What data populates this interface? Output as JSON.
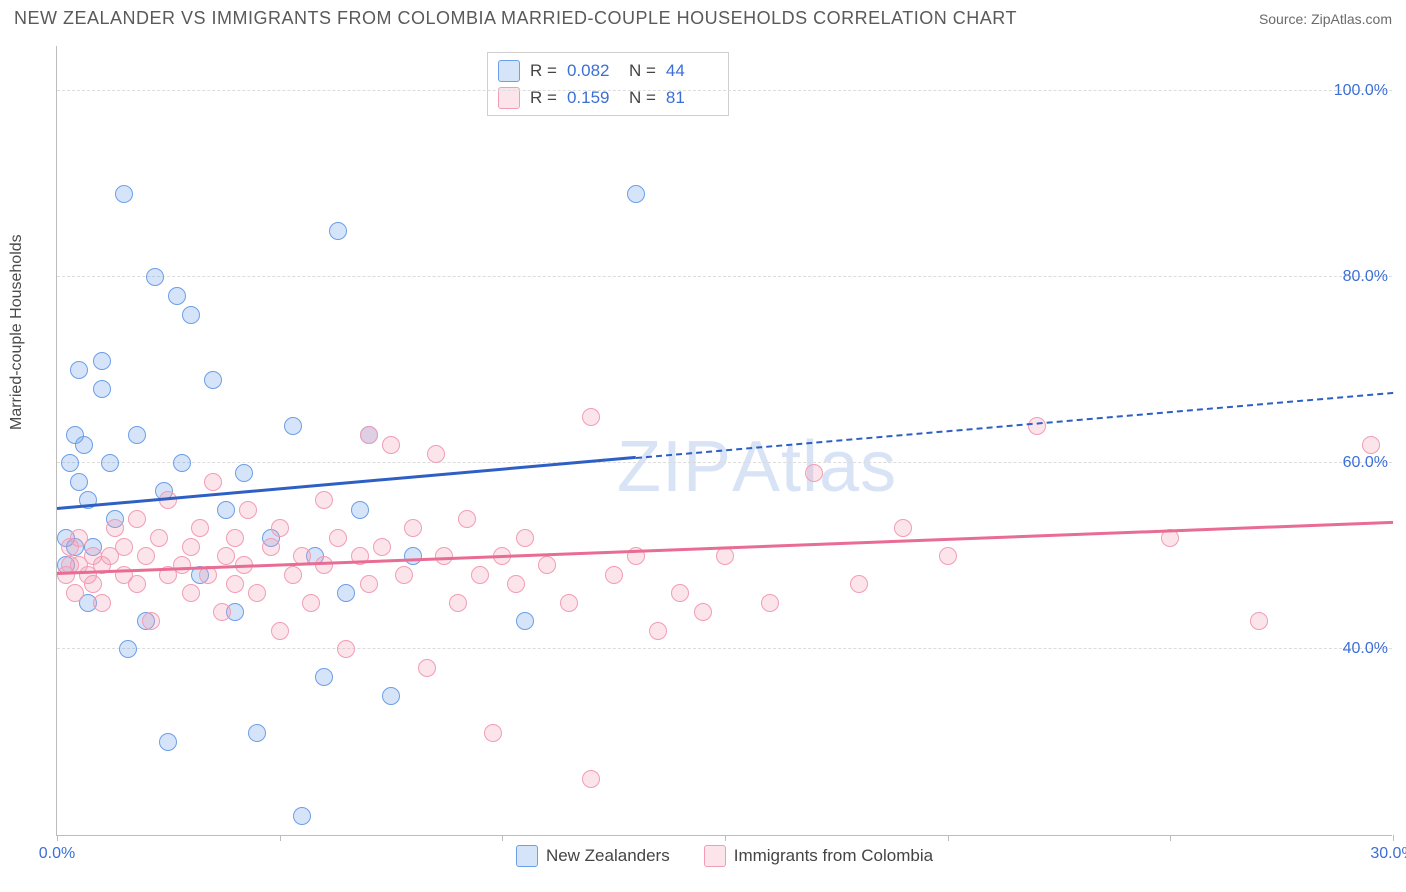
{
  "title": "NEW ZEALANDER VS IMMIGRANTS FROM COLOMBIA MARRIED-COUPLE HOUSEHOLDS CORRELATION CHART",
  "source": "Source: ZipAtlas.com",
  "ylabel": "Married-couple Households",
  "watermark_bold": "ZIP",
  "watermark_light": "Atlas",
  "chart": {
    "type": "scatter",
    "xlim": [
      0,
      30
    ],
    "ylim": [
      20,
      105
    ],
    "xtick_positions": [
      0,
      5,
      10,
      15,
      20,
      25,
      30
    ],
    "xtick_labels": [
      "0.0%",
      "",
      "",
      "",
      "",
      "",
      "30.0%"
    ],
    "ytick_positions": [
      40,
      60,
      80,
      100
    ],
    "ytick_labels": [
      "40.0%",
      "60.0%",
      "80.0%",
      "100.0%"
    ],
    "background_color": "#ffffff",
    "grid_color": "#dcdcdc",
    "axis_color": "#bdbdbd",
    "label_color_axis": "#3b6fd6",
    "marker_radius": 9,
    "marker_border_width": 1.5,
    "marker_fill_opacity": 0.28,
    "series": [
      {
        "name": "New Zealanders",
        "color": "#6c9fe8",
        "fill": "rgba(108,159,232,0.28)",
        "stroke": "#6c9fe8",
        "r_label": "R =",
        "r_value": "0.082",
        "n_label": "N =",
        "n_value": "44",
        "trend": {
          "x1": 0,
          "y1": 55,
          "x2": 13,
          "y2": 60.5,
          "x2_dash": 30,
          "y2_dash": 67.5,
          "color": "#2d5fc4"
        },
        "points": [
          [
            0.2,
            52
          ],
          [
            0.2,
            49
          ],
          [
            0.3,
            60
          ],
          [
            0.4,
            63
          ],
          [
            0.4,
            51
          ],
          [
            0.5,
            70
          ],
          [
            0.5,
            58
          ],
          [
            0.6,
            62
          ],
          [
            0.7,
            56
          ],
          [
            0.7,
            45
          ],
          [
            0.8,
            51
          ],
          [
            1.0,
            68
          ],
          [
            1.0,
            71
          ],
          [
            1.2,
            60
          ],
          [
            1.3,
            54
          ],
          [
            1.5,
            89
          ],
          [
            1.6,
            40
          ],
          [
            1.8,
            63
          ],
          [
            2.0,
            43
          ],
          [
            2.2,
            80
          ],
          [
            2.4,
            57
          ],
          [
            2.5,
            30
          ],
          [
            2.7,
            78
          ],
          [
            2.8,
            60
          ],
          [
            3.0,
            76
          ],
          [
            3.2,
            48
          ],
          [
            3.5,
            69
          ],
          [
            3.8,
            55
          ],
          [
            4.0,
            44
          ],
          [
            4.2,
            59
          ],
          [
            4.5,
            31
          ],
          [
            4.8,
            52
          ],
          [
            5.3,
            64
          ],
          [
            5.5,
            22
          ],
          [
            5.8,
            50
          ],
          [
            6.0,
            37
          ],
          [
            6.3,
            85
          ],
          [
            6.5,
            46
          ],
          [
            6.8,
            55
          ],
          [
            7.0,
            63
          ],
          [
            7.5,
            35
          ],
          [
            8.0,
            50
          ],
          [
            10.5,
            43
          ],
          [
            13.0,
            89
          ]
        ]
      },
      {
        "name": "Immigrants from Colombia",
        "color": "#f29db5",
        "fill": "rgba(242,157,181,0.28)",
        "stroke": "#f29db5",
        "r_label": "R =",
        "r_value": "0.159",
        "n_label": "N =",
        "n_value": "81",
        "trend": {
          "x1": 0,
          "y1": 48,
          "x2": 30,
          "y2": 53.5,
          "color": "#e86c93"
        },
        "points": [
          [
            0.2,
            48
          ],
          [
            0.3,
            49
          ],
          [
            0.3,
            51
          ],
          [
            0.4,
            46
          ],
          [
            0.5,
            49
          ],
          [
            0.5,
            52
          ],
          [
            0.7,
            48
          ],
          [
            0.8,
            50
          ],
          [
            0.8,
            47
          ],
          [
            1.0,
            49
          ],
          [
            1.0,
            45
          ],
          [
            1.2,
            50
          ],
          [
            1.3,
            53
          ],
          [
            1.5,
            48
          ],
          [
            1.5,
            51
          ],
          [
            1.8,
            47
          ],
          [
            1.8,
            54
          ],
          [
            2.0,
            50
          ],
          [
            2.1,
            43
          ],
          [
            2.3,
            52
          ],
          [
            2.5,
            48
          ],
          [
            2.5,
            56
          ],
          [
            2.8,
            49
          ],
          [
            3.0,
            46
          ],
          [
            3.0,
            51
          ],
          [
            3.2,
            53
          ],
          [
            3.4,
            48
          ],
          [
            3.5,
            58
          ],
          [
            3.7,
            44
          ],
          [
            3.8,
            50
          ],
          [
            4.0,
            47
          ],
          [
            4.0,
            52
          ],
          [
            4.2,
            49
          ],
          [
            4.3,
            55
          ],
          [
            4.5,
            46
          ],
          [
            4.8,
            51
          ],
          [
            5.0,
            42
          ],
          [
            5.0,
            53
          ],
          [
            5.3,
            48
          ],
          [
            5.5,
            50
          ],
          [
            5.7,
            45
          ],
          [
            6.0,
            56
          ],
          [
            6.0,
            49
          ],
          [
            6.3,
            52
          ],
          [
            6.5,
            40
          ],
          [
            6.8,
            50
          ],
          [
            7.0,
            63
          ],
          [
            7.0,
            47
          ],
          [
            7.3,
            51
          ],
          [
            7.5,
            62
          ],
          [
            7.8,
            48
          ],
          [
            8.0,
            53
          ],
          [
            8.3,
            38
          ],
          [
            8.5,
            61
          ],
          [
            8.7,
            50
          ],
          [
            9.0,
            45
          ],
          [
            9.2,
            54
          ],
          [
            9.5,
            48
          ],
          [
            9.8,
            31
          ],
          [
            10.0,
            50
          ],
          [
            10.3,
            47
          ],
          [
            10.5,
            52
          ],
          [
            11.0,
            49
          ],
          [
            11.5,
            45
          ],
          [
            12.0,
            26
          ],
          [
            12.0,
            65
          ],
          [
            12.5,
            48
          ],
          [
            13.0,
            50
          ],
          [
            13.5,
            42
          ],
          [
            14.0,
            46
          ],
          [
            14.5,
            44
          ],
          [
            15.0,
            50
          ],
          [
            16.0,
            45
          ],
          [
            17.0,
            59
          ],
          [
            18.0,
            47
          ],
          [
            19.0,
            53
          ],
          [
            20.0,
            50
          ],
          [
            22.0,
            64
          ],
          [
            25.0,
            52
          ],
          [
            27.0,
            43
          ],
          [
            29.5,
            62
          ]
        ]
      }
    ]
  },
  "legend": {
    "series1_label": "New Zealanders",
    "series2_label": "Immigrants from Colombia"
  }
}
